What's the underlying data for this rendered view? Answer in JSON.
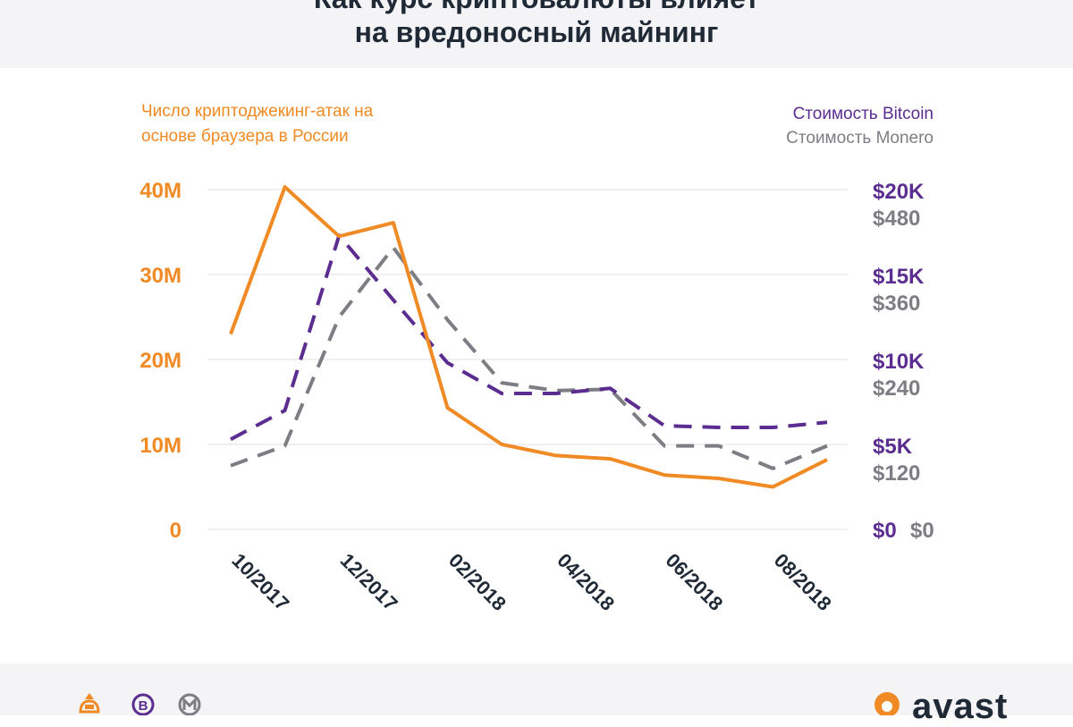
{
  "header": {
    "title_line1": "Как курс криптовалюты влияет",
    "title_line2": "на вредоносный майнинг"
  },
  "footer": {
    "icons": [
      "hacker-icon",
      "bitcoin-icon",
      "monero-icon"
    ],
    "brand": "avast"
  },
  "colors": {
    "attacks": "#f08a24",
    "bitcoin": "#5b2d90",
    "monero": "#7d7d84",
    "grid": "#e6e6e6",
    "title": "#1f2a36"
  },
  "chart_data": {
    "type": "line",
    "x": [
      "10/2017",
      "11/2017",
      "12/2017",
      "01/2018",
      "02/2018",
      "03/2018",
      "04/2018",
      "05/2018",
      "06/2018",
      "07/2018",
      "08/2018",
      "09/2018"
    ],
    "x_tick_labels": [
      "10/2017",
      "",
      "12/2017",
      "",
      "02/2018",
      "",
      "04/2018",
      "",
      "06/2018",
      "",
      "08/2018",
      ""
    ],
    "left_axis": {
      "label_lines": [
        "Число криптоджекинг-атак на",
        "основе браузера в России"
      ],
      "ticks": [
        "0",
        "10M",
        "20M",
        "30M",
        "40M"
      ],
      "ylim": [
        0,
        40000000
      ]
    },
    "right_axis": {
      "legend": [
        "Стоимость Bitcoin",
        "Стоимость Monero"
      ],
      "bitcoin_ticks": [
        "$0",
        "$5K",
        "$10K",
        "$15K",
        "$20K"
      ],
      "monero_ticks": [
        "$0",
        "$120",
        "$240",
        "$360",
        "$480"
      ],
      "bitcoin_ylim": [
        0,
        20000
      ],
      "monero_ylim": [
        0,
        480
      ]
    },
    "series": [
      {
        "name": "Число криптоджекинг-атак на основе браузера в России",
        "axis": "left",
        "style": "solid",
        "values": [
          23000000,
          40300000,
          34500000,
          36100000,
          14300000,
          10000000,
          8700000,
          8300000,
          6400000,
          6000000,
          5000000,
          8200000
        ]
      },
      {
        "name": "Стоимость Bitcoin",
        "axis": "right_bitcoin",
        "style": "dashed",
        "values": [
          5300,
          7000,
          17300,
          13500,
          9800,
          8000,
          8000,
          8300,
          6100,
          6000,
          6000,
          6300
        ]
      },
      {
        "name": "Стоимость Monero",
        "axis": "right_monero",
        "style": "dashed",
        "values": [
          90,
          118,
          300,
          398,
          296,
          207,
          196,
          198,
          118,
          118,
          86,
          118
        ]
      }
    ],
    "grid": true
  }
}
